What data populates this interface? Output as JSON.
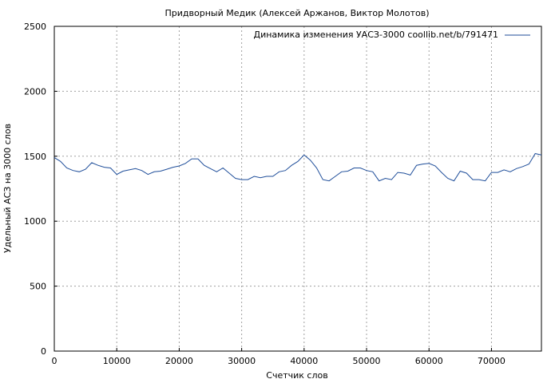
{
  "chart_data": {
    "type": "line",
    "title": "Придворный Медик (Алексей Аржанов, Виктор Молотов)",
    "xlabel": "Счетчик слов",
    "ylabel": "Удельный АСЗ на 3000 слов",
    "xlim": [
      0,
      78000
    ],
    "ylim": [
      0,
      2500
    ],
    "xticks": [
      0,
      10000,
      20000,
      30000,
      40000,
      50000,
      60000,
      70000
    ],
    "yticks": [
      0,
      500,
      1000,
      1500,
      2000,
      2500
    ],
    "grid": true,
    "legend_position": "top-right",
    "series": [
      {
        "name": "Динамика изменения УАСЗ-3000 coollib.net/b/791471",
        "color": "#1f4e9a",
        "x": [
          0,
          1000,
          2000,
          3000,
          4000,
          5000,
          6000,
          7000,
          8000,
          9000,
          10000,
          11000,
          12000,
          13000,
          14000,
          15000,
          16000,
          17000,
          18000,
          19000,
          20000,
          21000,
          22000,
          23000,
          24000,
          25000,
          26000,
          27000,
          28000,
          29000,
          30000,
          31000,
          32000,
          33000,
          34000,
          35000,
          36000,
          37000,
          38000,
          39000,
          40000,
          41000,
          42000,
          43000,
          44000,
          45000,
          46000,
          47000,
          48000,
          49000,
          50000,
          51000,
          52000,
          53000,
          54000,
          55000,
          56000,
          57000,
          58000,
          59000,
          60000,
          61000,
          62000,
          63000,
          64000,
          65000,
          66000,
          67000,
          68000,
          69000,
          70000,
          71000,
          72000,
          73000,
          74000,
          75000,
          76000,
          77000,
          78000
        ],
        "y": [
          1490,
          1460,
          1410,
          1390,
          1380,
          1400,
          1450,
          1430,
          1415,
          1410,
          1360,
          1385,
          1395,
          1405,
          1390,
          1360,
          1380,
          1385,
          1400,
          1415,
          1425,
          1445,
          1480,
          1480,
          1430,
          1405,
          1380,
          1410,
          1370,
          1330,
          1320,
          1320,
          1345,
          1335,
          1345,
          1345,
          1380,
          1390,
          1430,
          1460,
          1510,
          1470,
          1410,
          1320,
          1310,
          1345,
          1380,
          1385,
          1410,
          1410,
          1390,
          1380,
          1310,
          1330,
          1320,
          1375,
          1370,
          1355,
          1430,
          1440,
          1445,
          1425,
          1375,
          1330,
          1310,
          1385,
          1370,
          1320,
          1320,
          1310,
          1375,
          1375,
          1395,
          1380,
          1405,
          1420,
          1440,
          1520,
          1510
        ]
      }
    ]
  }
}
